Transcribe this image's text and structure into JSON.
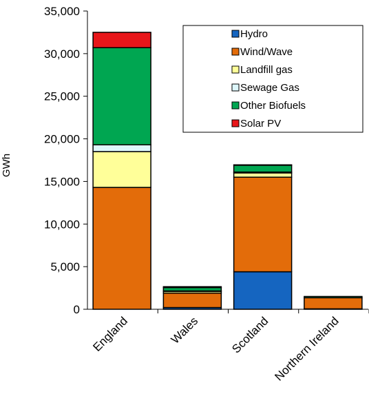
{
  "chart_data": {
    "type": "bar",
    "stacked": true,
    "categories": [
      "England",
      "Wales",
      "Scotland",
      "Northern Ireland"
    ],
    "series": [
      {
        "name": "Hydro",
        "color": "#1565C0",
        "values": [
          0,
          200,
          4400,
          50
        ]
      },
      {
        "name": "Wind/Wave",
        "color": "#E36C0A",
        "values": [
          14300,
          1700,
          11100,
          1300
        ]
      },
      {
        "name": "Landfill gas",
        "color": "#FFFF99",
        "values": [
          4200,
          200,
          500,
          0
        ]
      },
      {
        "name": "Sewage Gas",
        "color": "#DDF7FB",
        "values": [
          800,
          50,
          100,
          0
        ]
      },
      {
        "name": "Other Biofuels",
        "color": "#00A651",
        "values": [
          11400,
          400,
          800,
          150
        ]
      },
      {
        "name": "Solar PV",
        "color": "#E8161A",
        "values": [
          1800,
          100,
          50,
          0
        ]
      }
    ],
    "ylabel": "GWh",
    "ylim": [
      0,
      35000
    ],
    "yticks": [
      "0",
      "5,000",
      "10,000",
      "15,000",
      "20,000",
      "25,000",
      "30,000",
      "35,000"
    ],
    "ytick_values": [
      0,
      5000,
      10000,
      15000,
      20000,
      25000,
      30000,
      35000
    ],
    "legend_position": "top-right",
    "grid": false
  }
}
